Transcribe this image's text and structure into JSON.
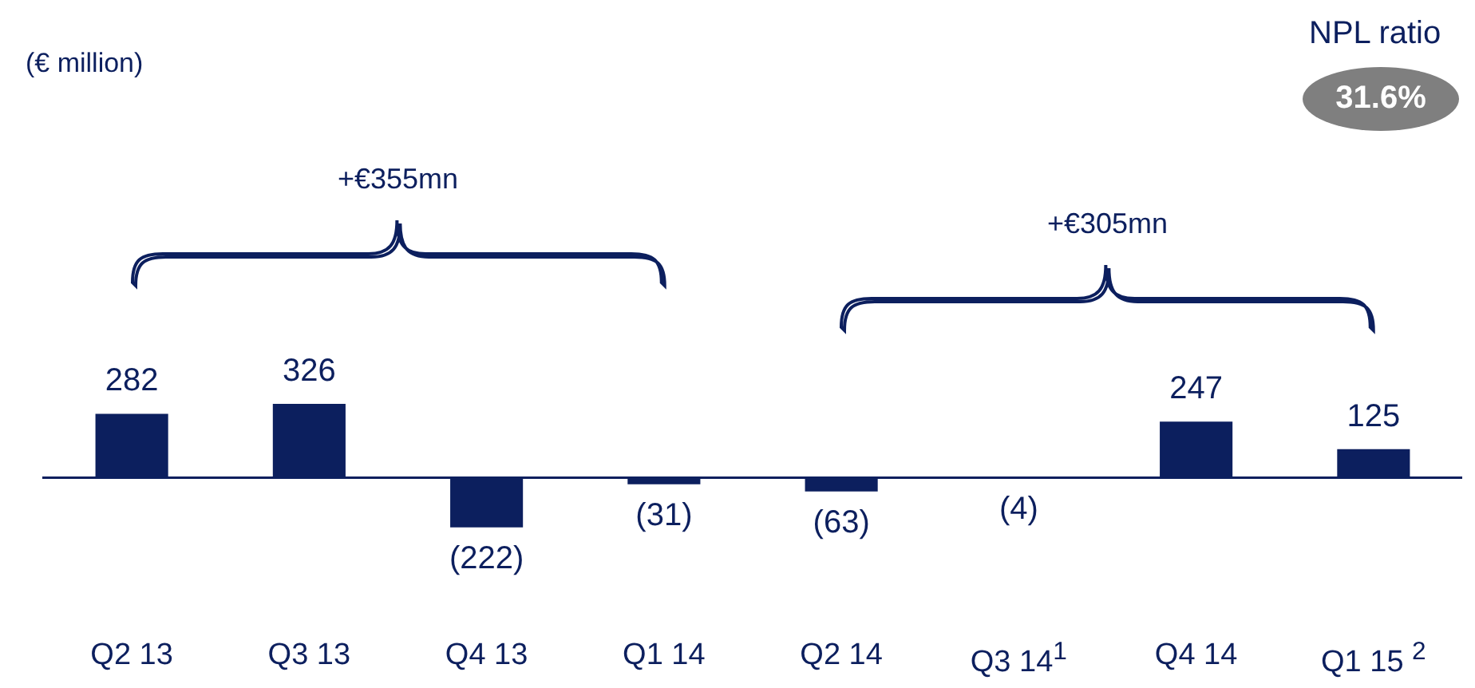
{
  "chart_data": {
    "type": "bar",
    "categories": [
      "Q2 13",
      "Q3 13",
      "Q4 13",
      "Q1 14",
      "Q2 14",
      "Q3 14$^{1}$",
      "Q4 14",
      "Q1 15 $^{2}$"
    ],
    "values": [
      282,
      326,
      -222,
      -31,
      -63,
      -4,
      247,
      125
    ],
    "value_labels": [
      "282",
      "326",
      "(222)",
      "(31)",
      "(63)",
      "(4)",
      "247",
      "125"
    ],
    "color": "#0c1f5e",
    "annotations": [
      "(€ million)",
      "NPL ratio",
      "31.6%",
      "+€355mn",
      "+€305mn"
    ]
  }
}
